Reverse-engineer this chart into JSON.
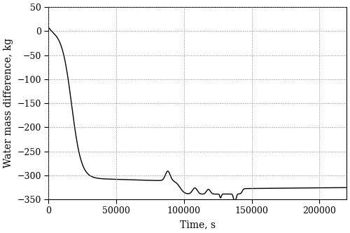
{
  "title": "",
  "xlabel": "Time, s",
  "ylabel": "Water mass difference, kg",
  "xlim": [
    0,
    220000
  ],
  "ylim": [
    -350,
    50
  ],
  "yticks": [
    50,
    0,
    -50,
    -100,
    -150,
    -200,
    -250,
    -300,
    -350
  ],
  "xticks": [
    0,
    50000,
    100000,
    150000,
    200000
  ],
  "xtick_labels": [
    "0",
    "50000",
    "100000",
    "150000",
    "200000"
  ],
  "line_color": "#000000",
  "line_width": 1.0,
  "background_color": "#ffffff",
  "grid_color": "#888888",
  "grid_linestyle": ":",
  "grid_linewidth": 0.7,
  "tick_fontsize": 9,
  "label_fontsize": 10
}
